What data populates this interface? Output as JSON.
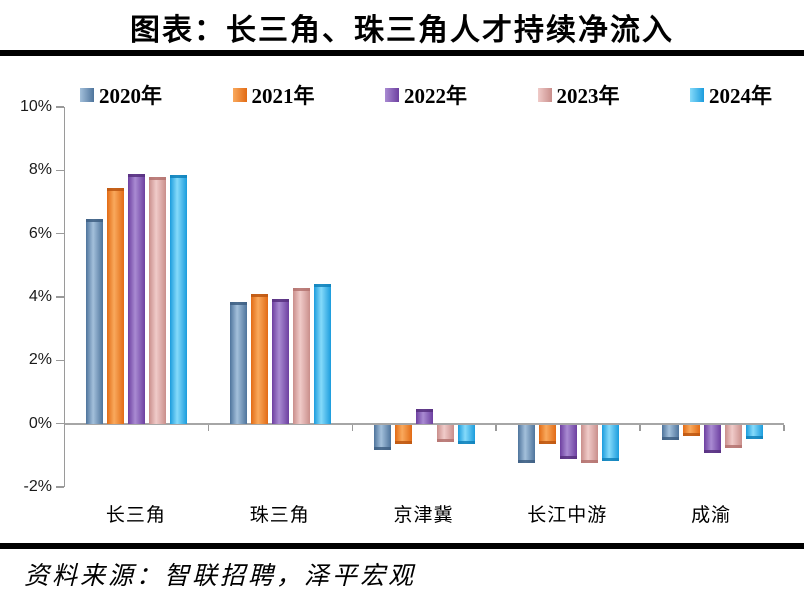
{
  "title": "图表：长三角、珠三角人才持续净流入",
  "source": "资料来源：智联招聘，泽平宏观",
  "colors": {
    "axis": "#9a9a9a",
    "zero_line": "#a6a6a6",
    "divider_rule": "#000000"
  },
  "chart_data": {
    "type": "bar",
    "title": "图表：长三角、珠三角人才持续净流入",
    "xlabel": "",
    "ylabel": "",
    "ylim": [
      -2,
      10
    ],
    "y_tick_step": 2,
    "y_tick_labels": [
      "10%",
      "8%",
      "6%",
      "4%",
      "2%",
      "0%",
      "-2%"
    ],
    "grid": false,
    "legend_position": "top",
    "bar_style": "cylinder-gradient",
    "categories": [
      "长三角",
      "珠三角",
      "京津冀",
      "长江中游",
      "成渝"
    ],
    "series": [
      {
        "name": "2020年",
        "values": [
          6.45,
          3.85,
          -0.8,
          -1.2,
          -0.5
        ],
        "color_flat": "#5E87B0",
        "color_edge": "#4E749C",
        "color_light": "#A3C0DB",
        "color_dark": "#3E5F83"
      },
      {
        "name": "2021年",
        "values": [
          7.45,
          4.1,
          -0.6,
          -0.6,
          -0.35
        ],
        "color_flat": "#ED7D31",
        "color_edge": "#E26B15",
        "color_light": "#F9A95D",
        "color_dark": "#BC5712"
      },
      {
        "name": "2022年",
        "values": [
          7.9,
          3.95,
          0.45,
          -1.1,
          -0.9
        ],
        "color_flat": "#8055B0",
        "color_edge": "#6D3FA0",
        "color_light": "#A98BD2",
        "color_dark": "#57307F"
      },
      {
        "name": "2023年",
        "values": [
          7.8,
          4.3,
          -0.55,
          -1.2,
          -0.75
        ],
        "color_flat": "#D9A3A0",
        "color_edge": "#C98E8B",
        "color_light": "#F0CBC9",
        "color_dark": "#B47370"
      },
      {
        "name": "2024年",
        "values": [
          7.85,
          4.4,
          -0.6,
          -1.15,
          -0.45
        ],
        "color_flat": "#3DB7ED",
        "color_edge": "#1B9CDD",
        "color_light": "#85DAFA",
        "color_dark": "#1181BA"
      }
    ]
  }
}
